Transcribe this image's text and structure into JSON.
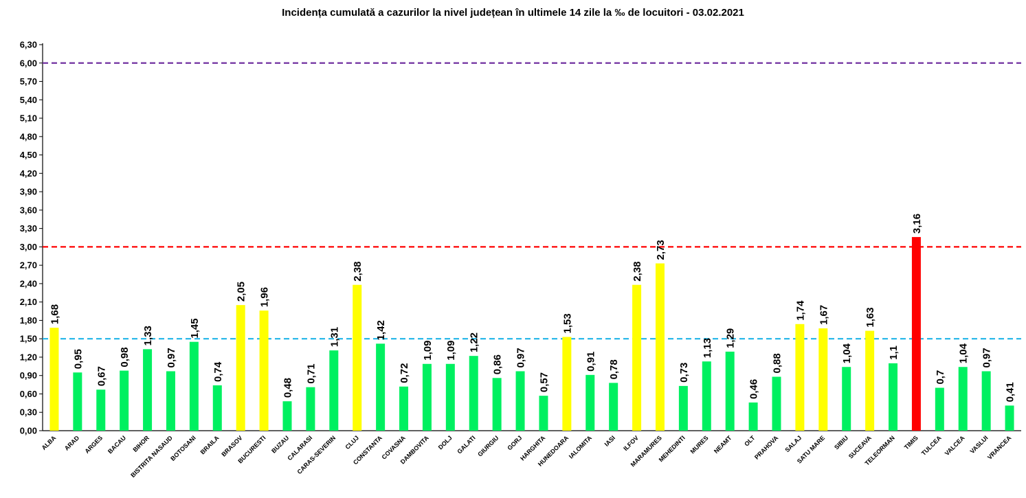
{
  "chart_data": {
    "type": "bar",
    "title": "Incidența cumulată a cazurilor la nivel județean în ultimele 14 zile la ‰ de locuitori - 03.02.2021",
    "xlabel": "",
    "ylabel": "",
    "ylim": [
      0,
      6.3
    ],
    "yticks": [
      "0,00",
      "0,30",
      "0,60",
      "0,90",
      "1,20",
      "1,50",
      "1,80",
      "2,10",
      "2,40",
      "2,70",
      "3,00",
      "3,30",
      "3,60",
      "3,90",
      "4,20",
      "4,50",
      "4,80",
      "5,10",
      "5,40",
      "5,70",
      "6,00",
      "6,30"
    ],
    "categories": [
      "ALBA",
      "ARAD",
      "ARGES",
      "BACAU",
      "BIHOR",
      "BISTRITA NASAUD",
      "BOTOSANI",
      "BRAILA",
      "BRASOV",
      "BUCURESTI",
      "BUZAU",
      "CALARASI",
      "CARAS-SEVERIN",
      "CLUJ",
      "CONSTANTA",
      "COVASNA",
      "DAMBOVITA",
      "DOLJ",
      "GALATI",
      "GIURGIU",
      "GORJ",
      "HARGHITA",
      "HUNEDOARA",
      "IALOMITA",
      "IASI",
      "ILFOV",
      "MARAMURES",
      "MEHEDINTI",
      "MURES",
      "NEAMT",
      "OLT",
      "PRAHOVA",
      "SALAJ",
      "SATU MARE",
      "SIBIU",
      "SUCEAVA",
      "TELEORMAN",
      "TIMIS",
      "TULCEA",
      "VALCEA",
      "VASLUI",
      "VRANCEA"
    ],
    "values": [
      1.68,
      0.95,
      0.67,
      0.98,
      1.33,
      0.97,
      1.45,
      0.74,
      2.05,
      1.96,
      0.48,
      0.71,
      1.31,
      2.38,
      1.42,
      0.72,
      1.09,
      1.09,
      1.22,
      0.86,
      0.97,
      0.57,
      1.53,
      0.91,
      0.78,
      2.38,
      2.73,
      0.73,
      1.13,
      1.29,
      0.46,
      0.88,
      1.74,
      1.67,
      1.04,
      1.63,
      1.1,
      3.16,
      0.7,
      1.04,
      0.97,
      0.41
    ],
    "value_labels": [
      "1,68",
      "0,95",
      "0,67",
      "0,98",
      "1,33",
      "0,97",
      "1,45",
      "0,74",
      "2,05",
      "1,96",
      "0,48",
      "0,71",
      "1,31",
      "2,38",
      "1,42",
      "0,72",
      "1,09",
      "1,09",
      "1,22",
      "0,86",
      "0,97",
      "0,57",
      "1,53",
      "0,91",
      "0,78",
      "2,38",
      "2,73",
      "0,73",
      "1,13",
      "1,29",
      "0,46",
      "0,88",
      "1,74",
      "1,67",
      "1,04",
      "1,63",
      "1,1",
      "3,16",
      "0,7",
      "1,04",
      "0,97",
      "0,41"
    ],
    "colors": {
      "green": "#00f060",
      "yellow": "#ffff00",
      "red": "#ff0000"
    },
    "thresholds": [
      {
        "value": 1.5,
        "color": "#1fb5e8"
      },
      {
        "value": 3.0,
        "color": "#ff0000"
      },
      {
        "value": 6.0,
        "color": "#7030a0"
      }
    ],
    "grid": false,
    "legend": "none"
  }
}
